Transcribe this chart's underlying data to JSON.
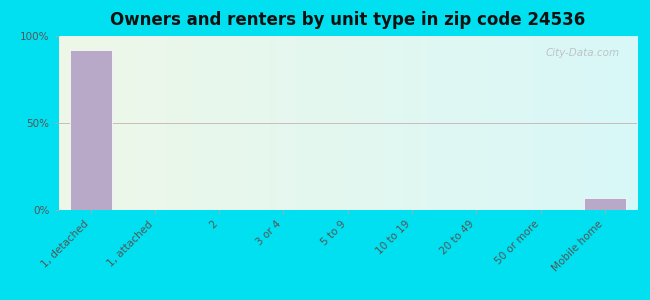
{
  "title": "Owners and renters by unit type in zip code 24536",
  "categories": [
    "1, detached",
    "1, attached",
    "2",
    "3 or 4",
    "5 to 9",
    "10 to 19",
    "20 to 49",
    "50 or more",
    "Mobile home"
  ],
  "values": [
    92,
    0,
    0,
    0,
    0,
    0,
    0,
    0,
    7
  ],
  "bar_color": "#b8a9c9",
  "background_outer": "#00e0f0",
  "background_inner_left": "#eef7e8",
  "background_inner_right": "#d8f8f8",
  "ylim": [
    0,
    100
  ],
  "yticks": [
    0,
    50,
    100
  ],
  "ytick_labels": [
    "0%",
    "50%",
    "100%"
  ],
  "title_fontsize": 12,
  "tick_label_fontsize": 7.5,
  "watermark": "City-Data.com"
}
